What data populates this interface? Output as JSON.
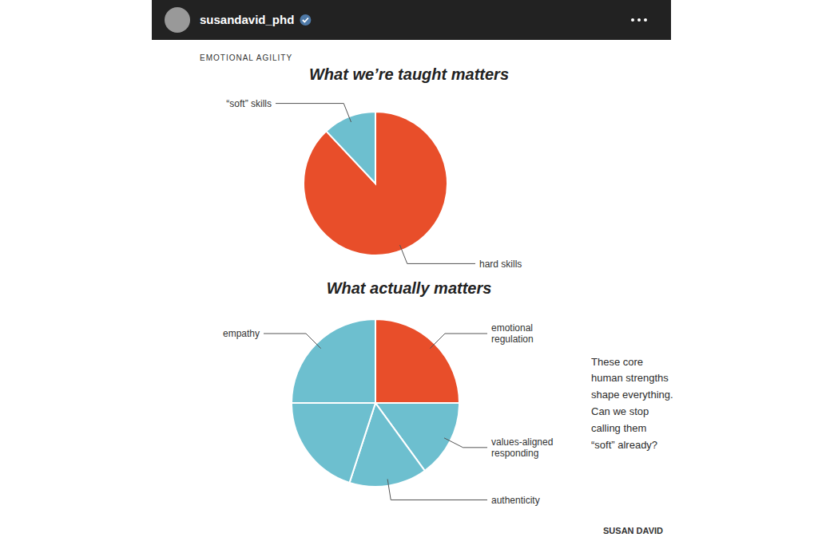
{
  "chart_data": [
    {
      "type": "pie",
      "title": "What we’re taught matters",
      "categories": [
        "hard skills",
        "“soft” skills"
      ],
      "values": [
        88,
        12
      ],
      "colors": [
        "#e84e2a",
        "#6dbfcf"
      ],
      "annotations": [
        "susandavid_phd",
        "EMOTIONAL AGILITY"
      ]
    },
    {
      "type": "pie",
      "title": "What actually matters",
      "categories": [
        "emotional\nregulation",
        "values-aligned\nresponding",
        "authenticity",
        null,
        "empathy"
      ],
      "values": [
        25,
        15,
        15,
        20,
        25
      ],
      "colors": [
        "#e84e2a",
        "#6dbfcf",
        "#6dbfcf",
        "#6dbfcf",
        "#6dbfcf"
      ],
      "annotations": [
        "These core\nhuman strengths\nshape everything.\nCan we stop\ncalling them\n“soft” already?",
        "SUSAN DAVID"
      ]
    }
  ]
}
